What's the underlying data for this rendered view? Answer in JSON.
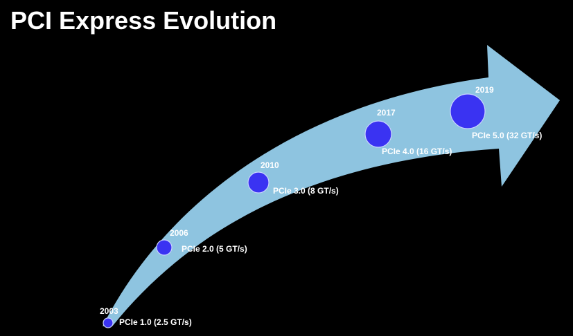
{
  "header": {
    "title": "PCI Express Evolution"
  },
  "nodes": [
    {
      "year": "2003",
      "label": "PCIe 1.0 (2.5 GT/s)"
    },
    {
      "year": "2006",
      "label": "PCIe 2.0 (5 GT/s)"
    },
    {
      "year": "2010",
      "label": "PCIe 3.0 (8 GT/s)"
    },
    {
      "year": "2017",
      "label": "PCIe 4.0 (16 GT/s)"
    },
    {
      "year": "2019",
      "label": "PCIe 5.0 (32 GT/s)"
    }
  ]
}
